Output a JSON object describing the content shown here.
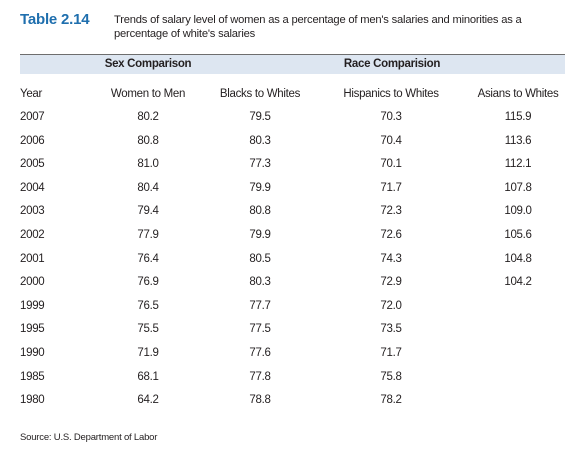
{
  "title": {
    "number": "Table 2.14",
    "caption": "Trends of salary level of women as a percentage of men's salaries and minorities as a percentage of white's salaries"
  },
  "groups": {
    "sex": "Sex Comparison",
    "race": "Race Comparision"
  },
  "columns": [
    "Year",
    "Women to Men",
    "Blacks to Whites",
    "Hispanics to Whites",
    "Asians to Whites"
  ],
  "rows": [
    [
      "2007",
      "80.2",
      "79.5",
      "70.3",
      "115.9"
    ],
    [
      "2006",
      "80.8",
      "80.3",
      "70.4",
      "113.6"
    ],
    [
      "2005",
      "81.0",
      "77.3",
      "70.1",
      "112.1"
    ],
    [
      "2004",
      "80.4",
      "79.9",
      "71.7",
      "107.8"
    ],
    [
      "2003",
      "79.4",
      "80.8",
      "72.3",
      "109.0"
    ],
    [
      "2002",
      "77.9",
      "79.9",
      "72.6",
      "105.6"
    ],
    [
      "2001",
      "76.4",
      "80.5",
      "74.3",
      "104.8"
    ],
    [
      "2000",
      "76.9",
      "80.3",
      "72.9",
      "104.2"
    ],
    [
      "1999",
      "76.5",
      "77.7",
      "72.0",
      ""
    ],
    [
      "1995",
      "75.5",
      "77.5",
      "73.5",
      ""
    ],
    [
      "1990",
      "71.9",
      "77.6",
      "71.7",
      ""
    ],
    [
      "1985",
      "68.1",
      "77.8",
      "75.8",
      ""
    ],
    [
      "1980",
      "64.2",
      "78.8",
      "78.2",
      ""
    ]
  ],
  "source": "Source: U.S. Department of Labor"
}
